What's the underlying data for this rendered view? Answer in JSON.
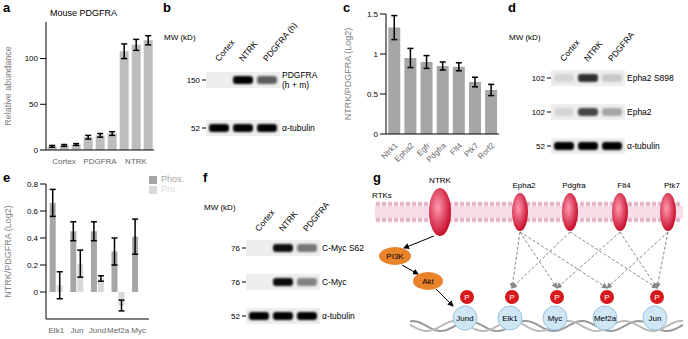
{
  "panel_labels": [
    "a",
    "b",
    "c",
    "d",
    "e",
    "f",
    "g"
  ],
  "chart_data": [
    {
      "type": "bar",
      "title": "Mouse PDGFRA",
      "y_label": "Relative abundance",
      "categories": [
        null,
        "Cortex",
        null,
        null,
        "PDGFRA",
        null,
        null,
        "NTRK",
        null
      ],
      "values": [
        4,
        5,
        6,
        14,
        16,
        18,
        108,
        115,
        120
      ],
      "errors": [
        1,
        1,
        1,
        2,
        2,
        2,
        8,
        6,
        5
      ],
      "color": "#bdbdbd",
      "ylim": [
        0,
        140
      ],
      "yticks": [
        0,
        50,
        100
      ]
    },
    {
      "type": "bar",
      "y_label": "NTRK/PDGFRA (Log2)",
      "categories": [
        "Ntrk1",
        "Epha2",
        "Egfr",
        "Pdgfra",
        "Flt4",
        "Ptk7",
        "Rorf2"
      ],
      "values": [
        1.33,
        0.95,
        0.9,
        0.85,
        0.84,
        0.65,
        0.55
      ],
      "errors": [
        0.15,
        0.12,
        0.08,
        0.05,
        0.05,
        0.06,
        0.07
      ],
      "color": "#a6a6a6",
      "ylim": [
        0,
        1.5
      ],
      "yticks": [
        0,
        0.5,
        1,
        1.5
      ]
    },
    {
      "type": "bar",
      "y_label": "NTRK/PDGFRA (Log2)",
      "categories": [
        "Elk1",
        "Jun",
        "Jund",
        "Mef2a",
        "Myc"
      ],
      "series": [
        {
          "name": "Phos.",
          "color": "#a6a6a6",
          "values": [
            0.66,
            0.45,
            0.45,
            0.3,
            0.41
          ],
          "errors": [
            0.1,
            0.07,
            0.07,
            0.1,
            0.13
          ]
        },
        {
          "name": "Pro.",
          "color": "#d9d9d9",
          "values": [
            0.05,
            0.21,
            0.1,
            -0.1,
            null
          ],
          "errors": [
            0.1,
            0.1,
            0.02,
            0.04,
            null
          ]
        }
      ],
      "ylim": [
        -0.2,
        0.8
      ],
      "yticks": [
        0,
        0.2,
        0.4,
        0.6,
        0.8
      ],
      "legend": "upper right"
    }
  ],
  "blots": [
    {
      "mw_label": "MW (kD)",
      "lanes": [
        "Cortex",
        "NTRK",
        "PDGFRA (h)"
      ],
      "rows": [
        {
          "mw": 150,
          "label": "PDGFRA (h + m)",
          "bands": [
            0,
            1,
            0.6
          ]
        },
        {
          "mw": 52,
          "label": "α-tubulin",
          "bands": [
            1,
            1,
            1
          ]
        }
      ]
    },
    {
      "mw_label": "MW (kD)",
      "lanes": [
        "Cortex",
        "NTRK",
        "PDGFRA"
      ],
      "rows": [
        {
          "mw": 102,
          "label": "Epha2 S898",
          "bands": [
            0.1,
            0.8,
            0.15
          ]
        },
        {
          "mw": 102,
          "label": "Epha2",
          "bands": [
            0.1,
            0.7,
            0.3
          ]
        },
        {
          "mw": 52,
          "label": "α-tubulin",
          "bands": [
            1,
            1,
            1
          ]
        }
      ]
    },
    {
      "mw_label": "MW (kD)",
      "lanes": [
        "Cortex",
        "NTRK",
        "PDGFRA"
      ],
      "rows": [
        {
          "mw": 76,
          "label": "C-Myc S62",
          "bands": [
            0,
            0.95,
            0.5
          ]
        },
        {
          "mw": 76,
          "label": "C-Myc",
          "bands": [
            0,
            0.95,
            0.45
          ]
        },
        {
          "mw": 52,
          "label": "α-tubulin",
          "bands": [
            1,
            1,
            1
          ]
        }
      ]
    }
  ],
  "diagram": {
    "receptors_label": "RTKs",
    "receptors": [
      "NTRK",
      "Epha2",
      "Pdgfra",
      "Flt4",
      "Ptk7"
    ],
    "kinases": [
      "PI3K",
      "Akt"
    ],
    "factors": [
      "Jund",
      "Elk1",
      "Myc",
      "Mef2a",
      "Jun"
    ],
    "phospho": "P"
  }
}
